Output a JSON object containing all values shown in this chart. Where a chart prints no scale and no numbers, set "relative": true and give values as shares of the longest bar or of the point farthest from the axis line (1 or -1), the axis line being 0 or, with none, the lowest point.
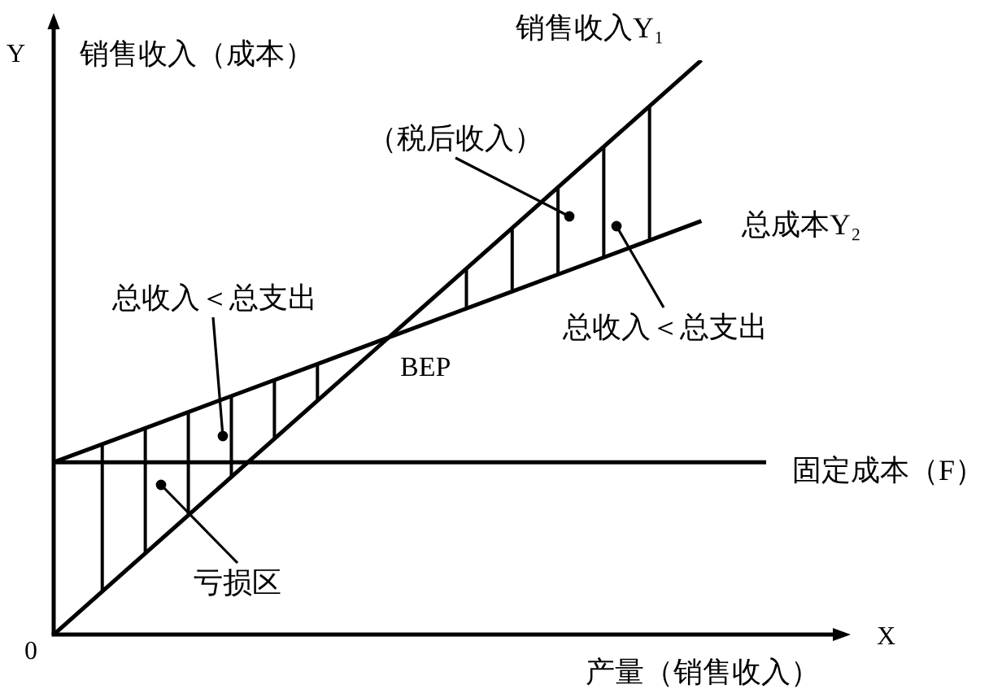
{
  "chart_data": {
    "type": "line",
    "xlabel": "产量（销售收入）",
    "ylabel": "销售收入（成本）",
    "categories": [
      null,
      null,
      null,
      null,
      null,
      null,
      null,
      null,
      null,
      null,
      null,
      null
    ],
    "relative": true,
    "series": [
      {
        "name": "销售收入Y₁",
        "color": "#000000",
        "values": [
          0,
          0.1,
          0.2,
          0.3,
          0.4,
          0.5,
          0.6,
          0.7,
          0.8,
          0.9,
          1,
          null
        ]
      },
      {
        "name": "总成本Y₂",
        "color": "#000000",
        "values": [
          0.3,
          0.342,
          0.384,
          0.426,
          0.468,
          0.51,
          0.552,
          0.594,
          0.636,
          0.678,
          0.72,
          null
        ]
      },
      {
        "name": "固定成本（F）",
        "color": "#000000",
        "values": [
          0.3,
          0.3,
          0.3,
          0.3,
          0.3,
          0.3,
          0.3,
          0.3,
          0.3,
          0.3,
          0.3,
          0.3
        ]
      }
    ],
    "annotations": [
      "Y",
      "（税后收入）",
      "总收入＜总支出",
      "总收入＜总支出",
      "BEP",
      "亏损区",
      "X",
      "0"
    ],
    "legend": false,
    "marker": "none",
    "line_style": "solid"
  }
}
